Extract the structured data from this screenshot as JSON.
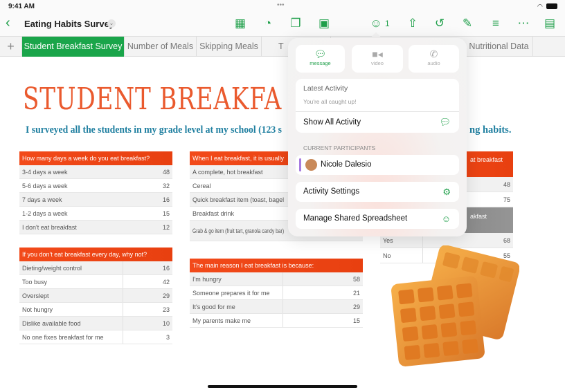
{
  "status": {
    "time": "9:41 AM"
  },
  "toolbar": {
    "doc_title": "Eating Habits Survey",
    "collab_count": "1",
    "icons": [
      "table-icon",
      "chart-icon",
      "shape-icon",
      "media-icon",
      "collaborate-icon",
      "share-icon",
      "undo-icon",
      "format-brush-icon",
      "organize-icon",
      "more-icon",
      "reading-view-icon"
    ]
  },
  "tabs": [
    {
      "label": "Student Breakfast Survey",
      "active": true
    },
    {
      "label": "Number of Meals"
    },
    {
      "label": "Skipping Meals"
    },
    {
      "label": "T"
    },
    {
      "label": "Nutritional Data"
    }
  ],
  "sheet": {
    "title": "STUDENT BREAKFA",
    "subtitle_left": "I surveyed all the students in my grade level at my school (123 s",
    "subtitle_right": "ng habits.",
    "tables": [
      {
        "header": "How many days a week do you eat breakfast?",
        "rows": [
          [
            "3-4 days a week",
            "48"
          ],
          [
            "5-6 days a week",
            "32"
          ],
          [
            "7 days a week",
            "16"
          ],
          [
            "1-2 days a week",
            "15"
          ],
          [
            "I don't eat breakfast",
            "12"
          ]
        ]
      },
      {
        "header": "When I eat breakfast, it is usually",
        "rows": [
          [
            "A complete, hot breakfast",
            ""
          ],
          [
            "Cereal",
            ""
          ],
          [
            "Quick breakfast item (toast, bagel",
            ""
          ],
          [
            "Breakfast drink",
            ""
          ],
          [
            "Grab & go item (fruit tart, granola candy bar)",
            ""
          ]
        ]
      },
      {
        "header": "at breakfast",
        "rows": [
          [
            "",
            "48"
          ],
          [
            "",
            "75"
          ]
        ],
        "header2": "akfast",
        "rows2": [
          [
            "Yes",
            "68"
          ],
          [
            "No",
            "55"
          ]
        ]
      },
      {
        "header": "If you don't eat breakfast every day, why not?",
        "rows": [
          [
            "Dieting/weight control",
            "16"
          ],
          [
            "Too busy",
            "42"
          ],
          [
            "Overslept",
            "29"
          ],
          [
            "Not hungry",
            "23"
          ],
          [
            "Dislike available food",
            "10"
          ],
          [
            "No one fixes breakfast for me",
            "3"
          ]
        ]
      },
      {
        "header": "The main reason I eat breakfast is because:",
        "rows": [
          [
            "I'm hungry",
            "58"
          ],
          [
            "Someone prepares it for me",
            "21"
          ],
          [
            "It's good for me",
            "29"
          ],
          [
            "My parents make me",
            "15"
          ]
        ]
      }
    ]
  },
  "popover": {
    "buttons": [
      {
        "label": "message",
        "icon": "message-icon",
        "active": true
      },
      {
        "label": "video",
        "icon": "video-icon"
      },
      {
        "label": "audio",
        "icon": "phone-icon"
      }
    ],
    "latest_activity": "Latest Activity",
    "caught_up": "You're all caught up!",
    "show_all": "Show All Activity",
    "participants_label": "CURRENT PARTICIPANTS",
    "participant": "Nicole Dalesio",
    "activity_settings": "Activity Settings",
    "manage": "Manage Shared Spreadsheet"
  },
  "colors": {
    "accent": "#1f9f4a",
    "table_header": "#f24a1a",
    "title": "#ea5a2e",
    "subtitle": "#1f7fa0"
  }
}
